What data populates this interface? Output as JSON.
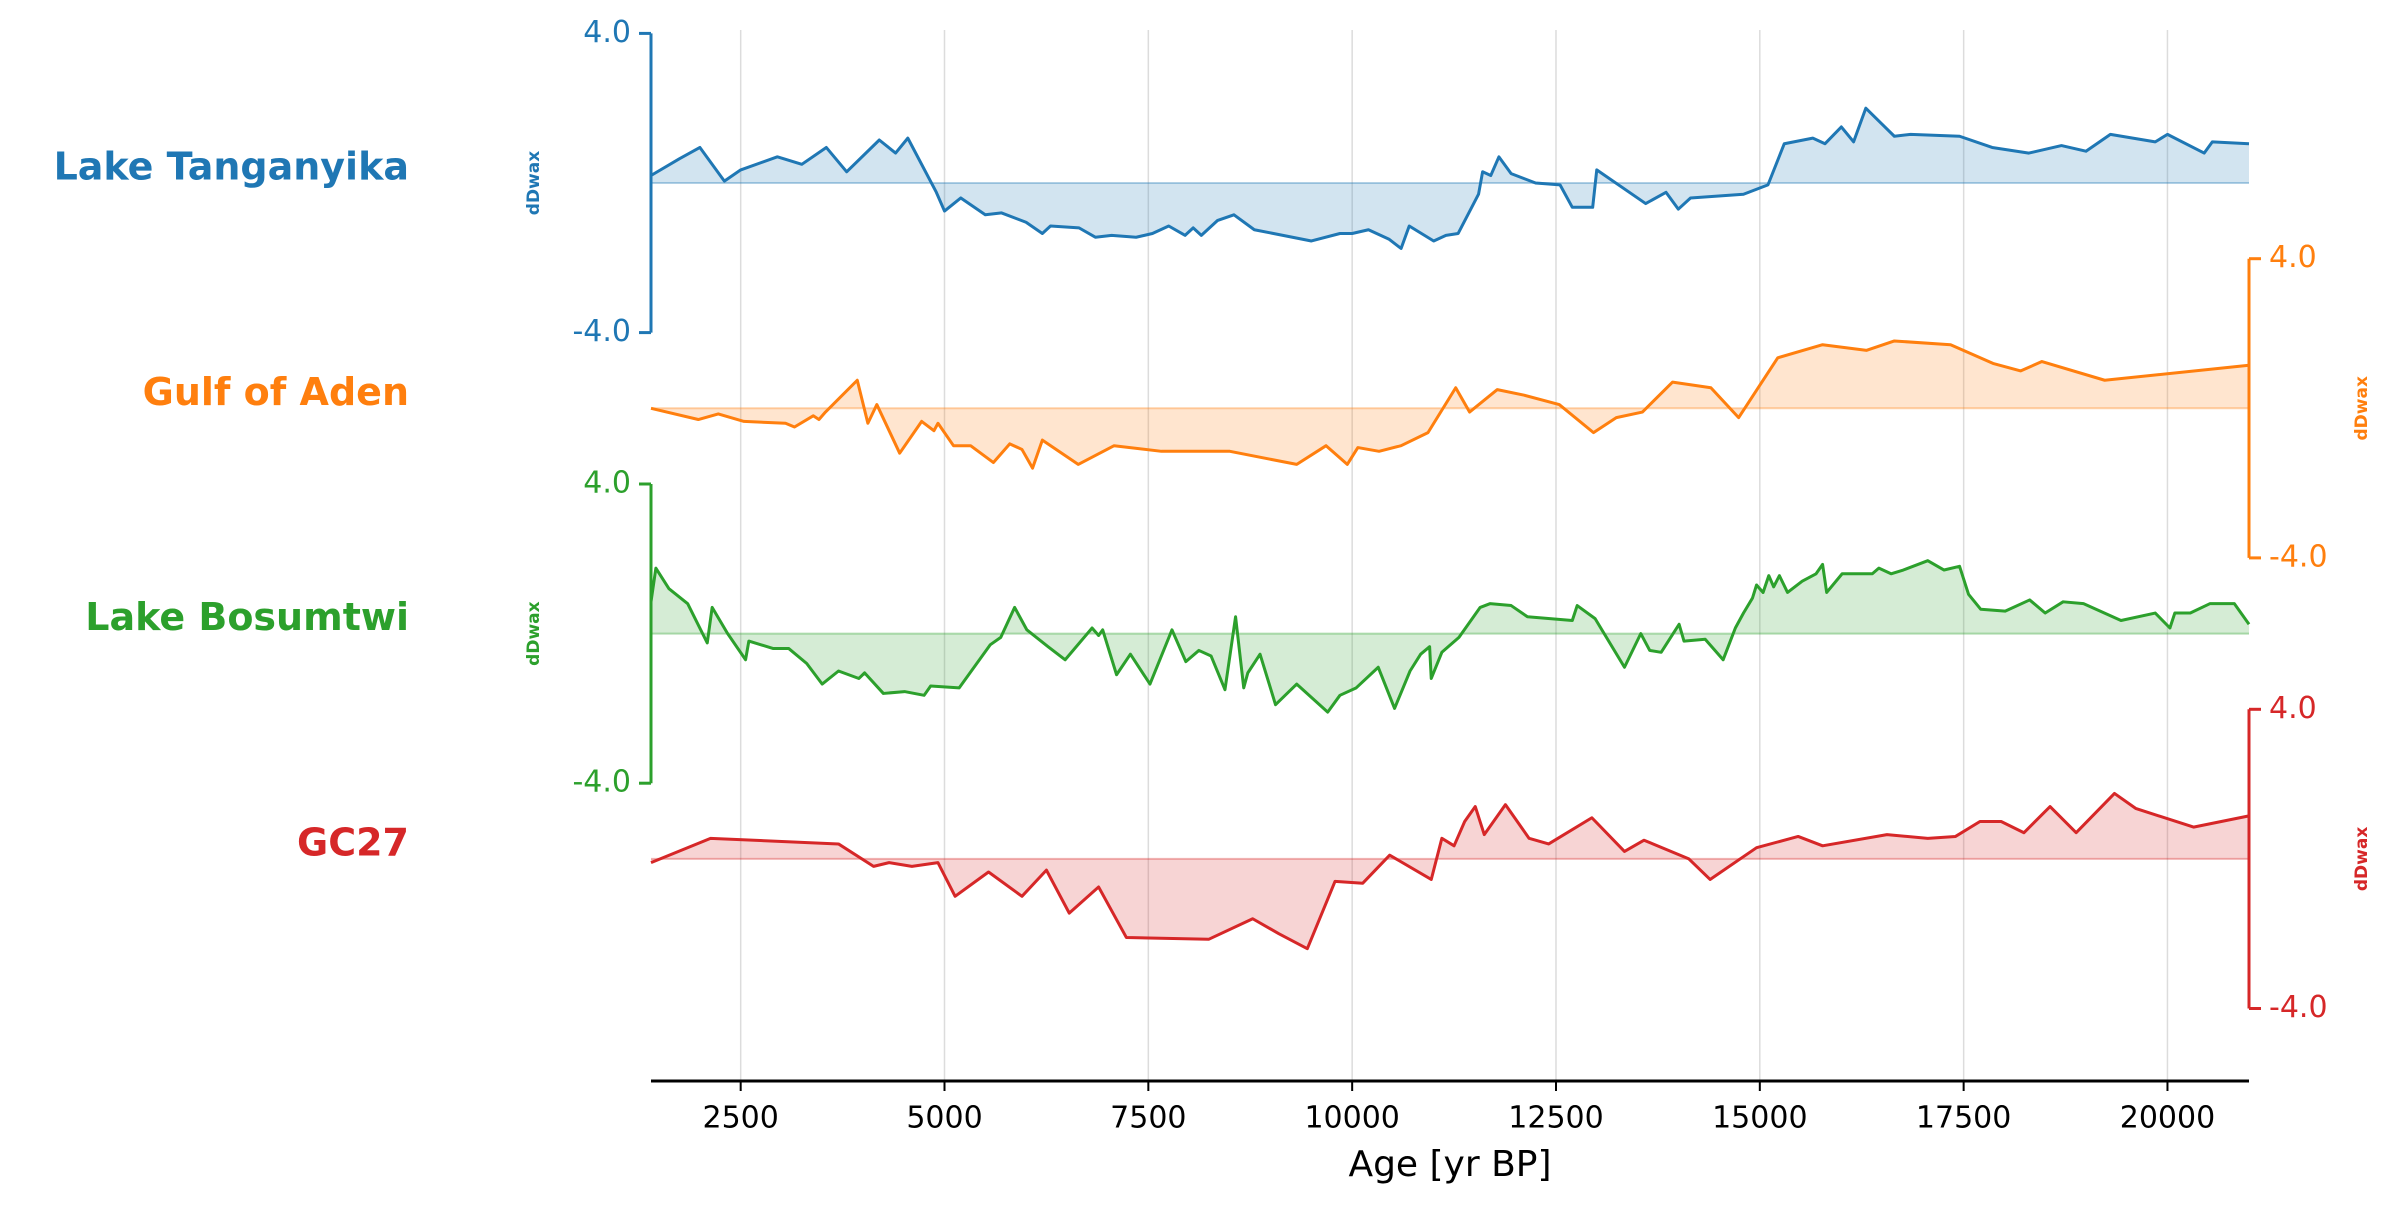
{
  "chart_data": {
    "type": "line",
    "xlabel": "Age [yr BP]",
    "xlim": [
      1400,
      21000
    ],
    "xticks": [
      2500,
      5000,
      7500,
      10000,
      12500,
      15000,
      17500,
      20000
    ],
    "grid": true,
    "series": [
      {
        "name": "Lake Tanganyika",
        "color": "#1f77b4",
        "ylabel": "dDwax",
        "y_axis_side": "left",
        "ylim": [
          -4,
          4
        ],
        "yticks": [
          {
            "value": -4,
            "label": "-4.0"
          },
          {
            "value": 4,
            "label": "4.0"
          }
        ],
        "x": [
          1400,
          1750,
          2000,
          2300,
          2500,
          2950,
          3250,
          3550,
          3800,
          4200,
          4400,
          4550,
          4900,
          5000,
          5200,
          5500,
          5700,
          6000,
          6200,
          6300,
          6650,
          6850,
          7050,
          7350,
          7550,
          7750,
          7950,
          8050,
          8150,
          8350,
          8550,
          8800,
          9500,
          9850,
          10000,
          10200,
          10450,
          10600,
          10700,
          11000,
          11150,
          11300,
          11550,
          11600,
          11700,
          11800,
          11950,
          12250,
          12550,
          12700,
          12950,
          13000,
          13600,
          13850,
          14000,
          14150,
          14800,
          15100,
          15300,
          15650,
          15800,
          16000,
          16150,
          16300,
          16650,
          16850,
          17450,
          17850,
          18300,
          18700,
          19000,
          19300,
          19850,
          20000,
          20450,
          20550,
          21000
        ],
        "values": [
          0.2,
          0.65,
          0.95,
          0.05,
          0.35,
          0.7,
          0.5,
          0.95,
          0.3,
          1.15,
          0.8,
          1.2,
          -0.25,
          -0.75,
          -0.4,
          -0.85,
          -0.8,
          -1.05,
          -1.35,
          -1.15,
          -1.2,
          -1.45,
          -1.4,
          -1.45,
          -1.35,
          -1.15,
          -1.4,
          -1.2,
          -1.4,
          -1.0,
          -0.85,
          -1.25,
          -1.55,
          -1.35,
          -1.35,
          -1.25,
          -1.5,
          -1.75,
          -1.15,
          -1.55,
          -1.4,
          -1.35,
          -0.3,
          0.3,
          0.2,
          0.7,
          0.25,
          0.0,
          -0.05,
          -0.65,
          -0.65,
          0.35,
          -0.55,
          -0.25,
          -0.7,
          -0.4,
          -0.3,
          -0.05,
          1.05,
          1.2,
          1.05,
          1.5,
          1.1,
          2.0,
          1.25,
          1.3,
          1.25,
          0.95,
          0.8,
          1.0,
          0.85,
          1.3,
          1.1,
          1.3,
          0.8,
          1.1,
          1.05
        ]
      },
      {
        "name": "Gulf of Aden",
        "color": "#ff7f0e",
        "ylabel": "dDwax",
        "y_axis_side": "right",
        "ylim": [
          -4,
          4
        ],
        "yticks": [
          {
            "value": -4,
            "label": "-4.0"
          },
          {
            "value": 4,
            "label": "4.0"
          }
        ],
        "x": [
          1400,
          1980,
          2225,
          2540,
          3050,
          3160,
          3390,
          3460,
          3540,
          3930,
          4060,
          4170,
          4450,
          4720,
          4870,
          4920,
          5110,
          5320,
          5600,
          5800,
          5950,
          6080,
          6200,
          6640,
          7080,
          7660,
          8500,
          9320,
          9680,
          9940,
          10070,
          10330,
          10600,
          10930,
          11270,
          11440,
          11780,
          12110,
          12540,
          12960,
          13240,
          13560,
          13930,
          14400,
          14740,
          15220,
          15770,
          16310,
          16650,
          17340,
          17860,
          18200,
          18460,
          19230,
          21000
        ],
        "values": [
          0,
          -0.3,
          -0.15,
          -0.35,
          -0.4,
          -0.5,
          -0.2,
          -0.3,
          -0.1,
          0.75,
          -0.4,
          0.1,
          -1.2,
          -0.35,
          -0.6,
          -0.4,
          -1.0,
          -1.0,
          -1.45,
          -0.95,
          -1.1,
          -1.6,
          -0.85,
          -1.5,
          -1.0,
          -1.15,
          -1.15,
          -1.5,
          -1.0,
          -1.5,
          -1.05,
          -1.15,
          -1.0,
          -0.65,
          0.55,
          -0.1,
          0.5,
          0.35,
          0.1,
          -0.65,
          -0.25,
          -0.1,
          0.7,
          0.55,
          -0.25,
          1.35,
          1.7,
          1.55,
          1.8,
          1.7,
          1.2,
          1.0,
          1.25,
          0.75,
          1.15
        ]
      },
      {
        "name": "Lake Bosumtwi",
        "color": "#2ca02c",
        "ylabel": "dDwax",
        "y_axis_side": "left",
        "ylim": [
          -4,
          4
        ],
        "yticks": [
          {
            "value": -4,
            "label": "-4.0"
          },
          {
            "value": 4,
            "label": "4.0"
          }
        ],
        "x": [
          1400,
          1460,
          1620,
          1850,
          2090,
          2150,
          2340,
          2560,
          2600,
          2900,
          3090,
          3310,
          3500,
          3700,
          3950,
          4020,
          4250,
          4510,
          4750,
          4830,
          5180,
          5560,
          5690,
          5860,
          6010,
          6270,
          6480,
          6810,
          6890,
          6940,
          7110,
          7280,
          7520,
          7790,
          7960,
          8120,
          8270,
          8440,
          8570,
          8670,
          8720,
          8870,
          9060,
          9320,
          9700,
          9850,
          10050,
          10320,
          10520,
          10710,
          10840,
          10950,
          10970,
          11100,
          11310,
          11570,
          11690,
          11950,
          12150,
          12700,
          12760,
          12980,
          13340,
          13540,
          13650,
          13790,
          14010,
          14070,
          14330,
          14550,
          14700,
          14800,
          14910,
          14960,
          15040,
          15110,
          15170,
          15240,
          15340,
          15520,
          15690,
          15770,
          15820,
          16010,
          16120,
          16380,
          16460,
          16610,
          16760,
          17060,
          17260,
          17450,
          17560,
          17710,
          18010,
          18310,
          18500,
          18720,
          18970,
          19430,
          19850,
          20030,
          20090,
          20280,
          20520,
          20820,
          21000
        ],
        "values": [
          0.85,
          1.75,
          1.2,
          0.8,
          -0.25,
          0.7,
          0,
          -0.7,
          -0.2,
          -0.4,
          -0.4,
          -0.8,
          -1.35,
          -1.0,
          -1.2,
          -1.05,
          -1.6,
          -1.55,
          -1.65,
          -1.4,
          -1.45,
          -0.3,
          -0.1,
          0.7,
          0.1,
          -0.35,
          -0.7,
          0.15,
          -0.05,
          0.1,
          -1.1,
          -0.55,
          -1.35,
          0.1,
          -0.75,
          -0.45,
          -0.6,
          -1.5,
          0.45,
          -1.45,
          -1.05,
          -0.55,
          -1.9,
          -1.35,
          -2.1,
          -1.65,
          -1.45,
          -0.9,
          -2.0,
          -1.0,
          -0.55,
          -0.35,
          -1.2,
          -0.5,
          -0.1,
          0.7,
          0.8,
          0.75,
          0.45,
          0.35,
          0.75,
          0.4,
          -0.9,
          0,
          -0.45,
          -0.5,
          0.25,
          -0.2,
          -0.15,
          -0.7,
          0.15,
          0.55,
          0.95,
          1.3,
          1.1,
          1.55,
          1.25,
          1.55,
          1.1,
          1.4,
          1.6,
          1.85,
          1.1,
          1.6,
          1.6,
          1.6,
          1.75,
          1.6,
          1.7,
          1.95,
          1.7,
          1.8,
          1.05,
          0.65,
          0.6,
          0.9,
          0.55,
          0.85,
          0.8,
          0.35,
          0.55,
          0.15,
          0.55,
          0.55,
          0.8,
          0.8,
          0.25
        ]
      },
      {
        "name": "GC27",
        "color": "#d62728",
        "ylabel": "dDwax",
        "y_axis_side": "right",
        "ylim": [
          -4,
          4
        ],
        "yticks": [
          {
            "value": -4,
            "label": "-4.0"
          },
          {
            "value": 4,
            "label": "4.0"
          }
        ],
        "x": [
          1400,
          2130,
          3700,
          4130,
          4320,
          4600,
          4920,
          5130,
          5540,
          5950,
          6250,
          6530,
          6890,
          7230,
          8240,
          8780,
          9100,
          9450,
          9790,
          10130,
          10460,
          10970,
          11100,
          11250,
          11380,
          11510,
          11620,
          11880,
          12170,
          12410,
          12940,
          13340,
          13580,
          14130,
          14390,
          14960,
          15470,
          15770,
          16560,
          17060,
          17400,
          17700,
          17960,
          18240,
          18560,
          18880,
          19350,
          19610,
          20320,
          21000
        ],
        "values": [
          -0.1,
          0.55,
          0.4,
          -0.2,
          -0.1,
          -0.2,
          -0.1,
          -1.0,
          -0.35,
          -1.0,
          -0.3,
          -1.45,
          -0.75,
          -2.1,
          -2.15,
          -1.6,
          -2.0,
          -2.4,
          -0.6,
          -0.65,
          0.1,
          -0.55,
          0.55,
          0.35,
          1.0,
          1.4,
          0.65,
          1.45,
          0.55,
          0.4,
          1.1,
          0.2,
          0.5,
          0,
          -0.55,
          0.3,
          0.6,
          0.35,
          0.65,
          0.55,
          0.6,
          1.0,
          1.0,
          0.7,
          1.4,
          0.7,
          1.75,
          1.35,
          0.85,
          1.15
        ]
      }
    ]
  }
}
